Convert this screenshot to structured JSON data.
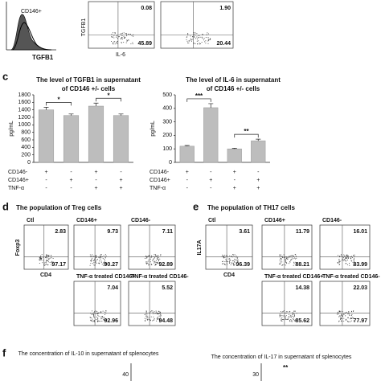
{
  "panel_a": {
    "histogram_label": "CD146+",
    "histogram_x_label": "TGFB1",
    "y_label": "TGFB1",
    "x_label": "IL-6",
    "plots": [
      {
        "upper": "0.08",
        "lower": "45.89"
      },
      {
        "upper": "1.90",
        "lower": "20.44"
      }
    ]
  },
  "panel_c_label": "c",
  "chart_data": [
    {
      "type": "bar",
      "title": "The level of TGFB1 in supernatant of CD146 +/- cells",
      "y_label": "pg/mL",
      "values": [
        1400,
        1250,
        1500,
        1250
      ],
      "errors": [
        70,
        40,
        80,
        40
      ],
      "color": "#bdbdbd",
      "ylim": [
        0,
        1800
      ],
      "yticks": [
        0,
        200,
        400,
        600,
        800,
        1000,
        1200,
        1400,
        1600,
        1800
      ],
      "annotations": [
        "*",
        "*"
      ],
      "condition_rows": [
        {
          "label": "CD146-",
          "marks": [
            "+",
            "-",
            "+",
            "-"
          ]
        },
        {
          "label": "CD146+",
          "marks": [
            "-",
            "+",
            "-",
            "+"
          ]
        },
        {
          "label": "TNF-α",
          "marks": [
            "-",
            "-",
            "+",
            "+"
          ]
        }
      ]
    },
    {
      "type": "bar",
      "title": "The level of IL-6 in supernatant of CD146 +/- cells",
      "y_label": "pg/mL",
      "values": [
        120,
        405,
        100,
        160
      ],
      "errors": [
        5,
        30,
        5,
        12
      ],
      "color": "#bdbdbd",
      "ylim": [
        0,
        500
      ],
      "yticks": [
        0,
        100,
        200,
        300,
        400,
        500
      ],
      "annotations": [
        "***",
        "**"
      ],
      "condition_rows": [
        {
          "label": "CD146-",
          "marks": [
            "+",
            "-",
            "+",
            "-"
          ]
        },
        {
          "label": "CD146+",
          "marks": [
            "-",
            "+",
            "-",
            "+"
          ]
        },
        {
          "label": "TNF-α",
          "marks": [
            "-",
            "-",
            "+",
            "+"
          ]
        }
      ]
    }
  ],
  "panel_d": {
    "label": "d",
    "title": "The population of Treg cells",
    "y_label": "Foxp3",
    "x_label": "CD4",
    "plots": [
      {
        "name": "Ctl",
        "upper": "2.83",
        "lower": "97.17"
      },
      {
        "name": "CD146+",
        "upper": "9.73",
        "lower": "90.27"
      },
      {
        "name": "CD146-",
        "upper": "7.11",
        "lower": "92.89"
      },
      {
        "name": "TNF-α treated CD146+",
        "upper": "7.04",
        "lower": "92.96"
      },
      {
        "name": "TNF-α treated CD146-",
        "upper": "5.52",
        "lower": "94.48"
      }
    ]
  },
  "panel_e": {
    "label": "e",
    "title": "The population of TH17 cells",
    "y_label": "IL17A",
    "x_label": "CD4",
    "plots": [
      {
        "name": "Ctl",
        "upper": "3.61",
        "lower": "96.39"
      },
      {
        "name": "CD146+",
        "upper": "11.79",
        "lower": "88.21"
      },
      {
        "name": "CD146-",
        "upper": "16.01",
        "lower": "83.99"
      },
      {
        "name": "TNF-α treated CD146+",
        "upper": "14.38",
        "lower": "85.62"
      },
      {
        "name": "TNF-α treated CD146-",
        "upper": "22.03",
        "lower": "77.97"
      }
    ]
  },
  "panel_f": {
    "label": "f",
    "left_title": "The concentration of IL-10 in supernatant of splenocytes",
    "left_tick": "40",
    "right_title": "The concentration of IL-17 in supernatant of splenocytes",
    "right_tick": "30",
    "annotation": "**"
  }
}
